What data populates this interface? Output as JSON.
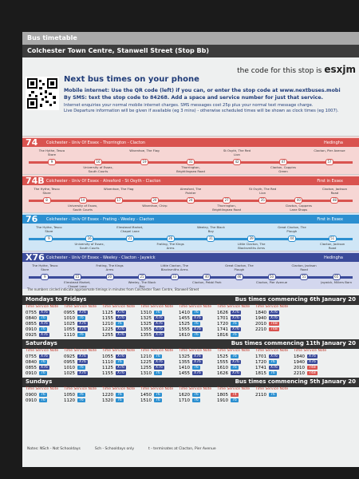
{
  "header": {
    "section": "Bus timetable",
    "stop": "Colchester Town Centre, Stanwell Street (Stop Bb)",
    "code_text": "the code for this stop is",
    "code": "esxjm"
  },
  "next_bus": {
    "heading": "Next bus times on your phone",
    "lines": [
      "Mobile internet: Use the QR code (left) if you can, or enter the stop code at www.nextbuses.mobi",
      "By SMS: text the stop code to 84268. Add a space and service number for just that service.",
      "Internet enquiries your normal mobile internet charges. SMS messages cost 25p plus your normal text message charge.",
      "Live Departure information will be given if available (eg 3 mins) - otherwise scheduled times will be shown as clock times (eg 1007)."
    ]
  },
  "routes": [
    {
      "number": "74",
      "color": "#d9534f",
      "light": "#f6d6d4",
      "description": "Colchester - Univ Of Essex - Thorrington - Clacton",
      "operator": "Hedingha",
      "stops": [
        {
          "name": "The Hythe, Tesco Store",
          "time": "9"
        },
        {
          "name": "University of Essex, South Courts",
          "time": "16"
        },
        {
          "name": "Wivenhoe, The Flag",
          "time": "19"
        },
        {
          "name": "Thorrington, Brightlingsea Road",
          "time": "31"
        },
        {
          "name": "St Osyth, The Red Lion",
          "time": "42"
        },
        {
          "name": "Clacton, Coppins Green",
          "time": "47"
        },
        {
          "name": "Clacton, Pier Avenue",
          "time": "57"
        }
      ]
    },
    {
      "number": "74B",
      "color": "#d9534f",
      "light": "#f6d6d4",
      "description": "Colchester - Univ Of Essex - Alresford - St Osyth - Clacton",
      "operator": "First in Essex",
      "stops": [
        {
          "name": "The Hythe, Tesco Store",
          "time": "8"
        },
        {
          "name": "University of Essex, South Courts",
          "time": "14"
        },
        {
          "name": "Wivenhoe, The Flag",
          "time": "17"
        },
        {
          "name": "Wivenhoe, Chirp",
          "time": "20"
        },
        {
          "name": "Alresford, The Pointer",
          "time": "24"
        },
        {
          "name": "Thorrington, Brightlingsea Road",
          "time": "27"
        },
        {
          "name": "St Osyth, The Red Lion",
          "time": "35"
        },
        {
          "name": "Clacton, Coppens Lane Shops",
          "time": "40"
        },
        {
          "name": "Clacton, Jackson Road",
          "time": "48"
        }
      ]
    },
    {
      "number": "76",
      "color": "#2b8fd0",
      "light": "#cfe6f6",
      "description": "Colchester - Univ Of Essex - Frating - Weeley - Clacton",
      "operator": "First in Essex",
      "stops": [
        {
          "name": "The Hythe, Tesco Store",
          "time": "9"
        },
        {
          "name": "University of Essex, South Courts",
          "time": "16"
        },
        {
          "name": "Elmstead Market, Chapel Lane",
          "time": "21"
        },
        {
          "name": "Frating, The Kings Arms",
          "time": "26"
        },
        {
          "name": "Weeley, The Black Boy",
          "time": "31"
        },
        {
          "name": "Little Clacton, The Blacksmiths Arms",
          "time": "39"
        },
        {
          "name": "Great Clacton, The Plough",
          "time": "44"
        },
        {
          "name": "Clacton, Jackson Road",
          "time": "51"
        }
      ]
    },
    {
      "number": "X76",
      "color": "#3b4a9a",
      "light": "#d3d7ee",
      "description": "Colchester - Univ Of Essex - Weeley - Clacton - Jaywick",
      "operator": "Hedingha",
      "stops": [
        {
          "name": "The Hythe, Tesco Store",
          "time": "9"
        },
        {
          "name": "Elmstead Market, Chapel Lane",
          "time": "15"
        },
        {
          "name": "Frating, The Kings Arms",
          "time": "20"
        },
        {
          "name": "Weeley, The Black Boy",
          "time": "25"
        },
        {
          "name": "Little Clacton, The Blacksmiths Arms",
          "time": "33"
        },
        {
          "name": "Clacton, Pebbl Park",
          "time": "40"
        },
        {
          "name": "Great Clacton, The Plough",
          "time": "46"
        },
        {
          "name": "Clacton, Pier Avenue",
          "time": "50"
        },
        {
          "name": "Clacton, Jackson Road",
          "time": "55"
        },
        {
          "name": "Jaywick, Millers Barn",
          "time": "65"
        }
      ]
    }
  ],
  "route_note": "The numbers circled indicate approximate timings in minutes from Colchester Town Centre, Stanwell Street",
  "column_header": "Time Service Note",
  "timetables": [
    {
      "days": "Mondays to Fridays",
      "commencing": "Bus times commencing 6th January 20",
      "columns": [
        [
          [
            "0755",
            "X76"
          ],
          [
            "0840",
            "76"
          ],
          [
            "0855",
            "X76"
          ],
          [
            "0910",
            "76"
          ],
          [
            "0925",
            "X76"
          ]
        ],
        [
          [
            "0955",
            "X76"
          ],
          [
            "1010",
            "76"
          ],
          [
            "1025",
            "X76"
          ],
          [
            "1055",
            "X76"
          ],
          [
            "1110",
            "76"
          ]
        ],
        [
          [
            "1125",
            "X76"
          ],
          [
            "1155",
            "X76"
          ],
          [
            "1210",
            "76"
          ],
          [
            "1225",
            "X76"
          ],
          [
            "1255",
            "X76"
          ]
        ],
        [
          [
            "1310",
            "76"
          ],
          [
            "1325",
            "X76"
          ],
          [
            "1325",
            "X76"
          ],
          [
            "1355",
            "X76"
          ],
          [
            "1355",
            "X76"
          ]
        ],
        [
          [
            "1410",
            "76"
          ],
          [
            "1455",
            "X76"
          ],
          [
            "1525",
            "76"
          ],
          [
            "1555",
            "X76"
          ],
          [
            "1610",
            "76"
          ]
        ],
        [
          [
            "1626",
            "X76"
          ],
          [
            "1701",
            "X76"
          ],
          [
            "1720",
            "76"
          ],
          [
            "1741",
            "X76"
          ],
          [
            "1816",
            "76"
          ]
        ],
        [
          [
            "1840",
            "X76"
          ],
          [
            "1940",
            "X76"
          ],
          [
            "2010",
            "74B"
          ],
          [
            "2210",
            "74B"
          ]
        ]
      ]
    },
    {
      "days": "Saturdays",
      "commencing": "Bus times commencing 11th January 20",
      "columns": [
        [
          [
            "0755",
            "X76"
          ],
          [
            "0840",
            "76"
          ],
          [
            "0855",
            "X76"
          ],
          [
            "0910",
            "76"
          ]
        ],
        [
          [
            "0925",
            "X76"
          ],
          [
            "0955",
            "X76"
          ],
          [
            "1010",
            "76"
          ],
          [
            "1025",
            "X76"
          ]
        ],
        [
          [
            "1055",
            "X76"
          ],
          [
            "1110",
            "76"
          ],
          [
            "1125",
            "X76"
          ],
          [
            "1155",
            "X76"
          ]
        ],
        [
          [
            "1210",
            "76"
          ],
          [
            "1225",
            "X76"
          ],
          [
            "1255",
            "X76"
          ],
          [
            "1310",
            "76"
          ]
        ],
        [
          [
            "1325",
            "X76"
          ],
          [
            "1355",
            "X76"
          ],
          [
            "1410",
            "76"
          ],
          [
            "1455",
            "X76"
          ]
        ],
        [
          [
            "1525",
            "76"
          ],
          [
            "1555",
            "X76"
          ],
          [
            "1610",
            "76"
          ],
          [
            "1626",
            "X76"
          ]
        ],
        [
          [
            "1701",
            "X76"
          ],
          [
            "1720",
            "76"
          ],
          [
            "1741",
            "X76"
          ],
          [
            "1815",
            "76"
          ]
        ],
        [
          [
            "1840",
            "X76"
          ],
          [
            "1940",
            "X76"
          ],
          [
            "2010",
            "74B"
          ],
          [
            "2210",
            "74B"
          ]
        ]
      ]
    },
    {
      "days": "Sundays",
      "commencing": "Bus times commencing 5th January 20",
      "columns": [
        [
          [
            "0900",
            "76"
          ],
          [
            "0910",
            "76"
          ]
        ],
        [
          [
            "1050",
            "76"
          ],
          [
            "1120",
            "76"
          ]
        ],
        [
          [
            "1220",
            "76"
          ],
          [
            "1320",
            "76"
          ]
        ],
        [
          [
            "1450",
            "76"
          ],
          [
            "1510",
            "76"
          ]
        ],
        [
          [
            "1620",
            "76"
          ],
          [
            "1710",
            "76"
          ]
        ],
        [
          [
            "1805",
            "74"
          ],
          [
            "1910",
            "76"
          ]
        ],
        [
          [
            "2110",
            "76"
          ]
        ]
      ]
    }
  ],
  "notes": [
    "Notes:  NSch - Not Schooldays",
    "Sch - Schooldays only",
    "t - terminates at Clacton, Pier Avenue"
  ]
}
